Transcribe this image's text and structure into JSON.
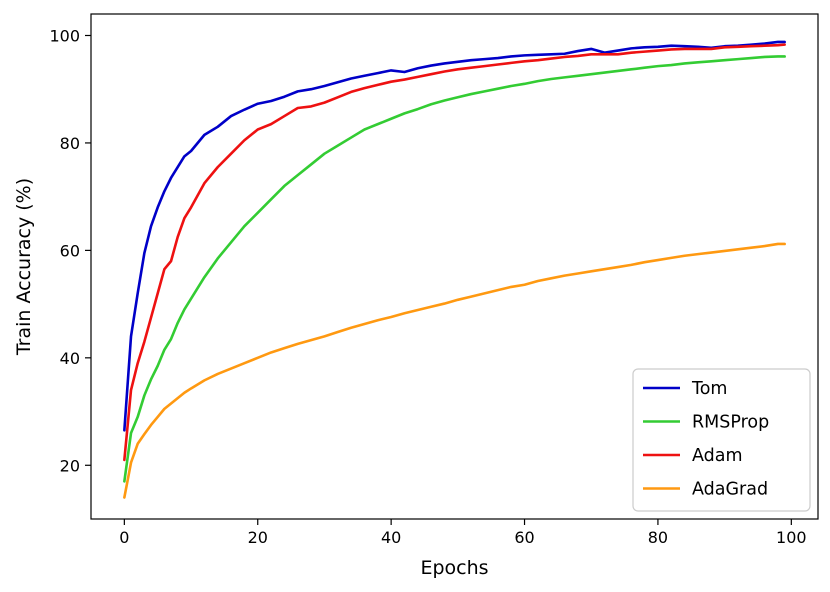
{
  "chart_data": {
    "type": "line",
    "title": "",
    "xlabel": "Epochs",
    "ylabel": "Train Accuracy (%)",
    "xlim": [
      -5,
      104
    ],
    "ylim": [
      10,
      104
    ],
    "xticks": [
      0,
      20,
      40,
      60,
      80,
      100
    ],
    "yticks": [
      20,
      40,
      60,
      80,
      100
    ],
    "grid": false,
    "legend_position": "bottom-right",
    "series": [
      {
        "name": "Tom",
        "color": "#0000c8",
        "points": [
          [
            0,
            26.5
          ],
          [
            1,
            44
          ],
          [
            2,
            52
          ],
          [
            3,
            59.5
          ],
          [
            4,
            64.5
          ],
          [
            5,
            68
          ],
          [
            6,
            71
          ],
          [
            7,
            73.5
          ],
          [
            8,
            75.5
          ],
          [
            9,
            77.5
          ],
          [
            10,
            78.5
          ],
          [
            12,
            81.5
          ],
          [
            14,
            83
          ],
          [
            16,
            85
          ],
          [
            18,
            86.2
          ],
          [
            20,
            87.3
          ],
          [
            22,
            87.8
          ],
          [
            24,
            88.6
          ],
          [
            26,
            89.6
          ],
          [
            28,
            90
          ],
          [
            30,
            90.6
          ],
          [
            32,
            91.3
          ],
          [
            34,
            92
          ],
          [
            36,
            92.5
          ],
          [
            38,
            93
          ],
          [
            40,
            93.5
          ],
          [
            42,
            93.2
          ],
          [
            44,
            93.9
          ],
          [
            46,
            94.4
          ],
          [
            48,
            94.8
          ],
          [
            50,
            95.1
          ],
          [
            52,
            95.4
          ],
          [
            54,
            95.6
          ],
          [
            56,
            95.8
          ],
          [
            58,
            96.1
          ],
          [
            60,
            96.3
          ],
          [
            62,
            96.4
          ],
          [
            64,
            96.5
          ],
          [
            66,
            96.6
          ],
          [
            68,
            97.1
          ],
          [
            70,
            97.5
          ],
          [
            72,
            96.8
          ],
          [
            74,
            97.2
          ],
          [
            76,
            97.6
          ],
          [
            78,
            97.8
          ],
          [
            80,
            97.9
          ],
          [
            82,
            98.1
          ],
          [
            84,
            98
          ],
          [
            86,
            97.9
          ],
          [
            88,
            97.7
          ],
          [
            90,
            98
          ],
          [
            92,
            98.1
          ],
          [
            94,
            98.3
          ],
          [
            96,
            98.5
          ],
          [
            98,
            98.8
          ],
          [
            99,
            98.8
          ]
        ]
      },
      {
        "name": "RMSProp",
        "color": "#33cc33",
        "points": [
          [
            0,
            17
          ],
          [
            1,
            26
          ],
          [
            2,
            29
          ],
          [
            3,
            33
          ],
          [
            4,
            36
          ],
          [
            5,
            38.5
          ],
          [
            6,
            41.5
          ],
          [
            7,
            43.5
          ],
          [
            8,
            46.5
          ],
          [
            9,
            49
          ],
          [
            10,
            51
          ],
          [
            12,
            55
          ],
          [
            14,
            58.5
          ],
          [
            16,
            61.5
          ],
          [
            18,
            64.5
          ],
          [
            20,
            67
          ],
          [
            22,
            69.5
          ],
          [
            24,
            72
          ],
          [
            26,
            74
          ],
          [
            28,
            76
          ],
          [
            30,
            78
          ],
          [
            32,
            79.5
          ],
          [
            34,
            81
          ],
          [
            36,
            82.5
          ],
          [
            38,
            83.5
          ],
          [
            40,
            84.5
          ],
          [
            42,
            85.5
          ],
          [
            44,
            86.3
          ],
          [
            46,
            87.2
          ],
          [
            48,
            87.9
          ],
          [
            50,
            88.5
          ],
          [
            52,
            89.1
          ],
          [
            54,
            89.6
          ],
          [
            56,
            90.1
          ],
          [
            58,
            90.6
          ],
          [
            60,
            91
          ],
          [
            62,
            91.5
          ],
          [
            64,
            91.9
          ],
          [
            66,
            92.2
          ],
          [
            68,
            92.5
          ],
          [
            70,
            92.8
          ],
          [
            72,
            93.1
          ],
          [
            74,
            93.4
          ],
          [
            76,
            93.7
          ],
          [
            78,
            94
          ],
          [
            80,
            94.3
          ],
          [
            82,
            94.5
          ],
          [
            84,
            94.8
          ],
          [
            86,
            95
          ],
          [
            88,
            95.2
          ],
          [
            90,
            95.4
          ],
          [
            92,
            95.6
          ],
          [
            94,
            95.8
          ],
          [
            96,
            96
          ],
          [
            98,
            96.1
          ],
          [
            99,
            96.1
          ]
        ]
      },
      {
        "name": "Adam",
        "color": "#ee1111",
        "points": [
          [
            0,
            21
          ],
          [
            1,
            34
          ],
          [
            2,
            39
          ],
          [
            3,
            43
          ],
          [
            4,
            47.5
          ],
          [
            5,
            52
          ],
          [
            6,
            56.5
          ],
          [
            7,
            58
          ],
          [
            8,
            62.5
          ],
          [
            9,
            66
          ],
          [
            10,
            68
          ],
          [
            12,
            72.5
          ],
          [
            14,
            75.5
          ],
          [
            16,
            78
          ],
          [
            18,
            80.5
          ],
          [
            20,
            82.5
          ],
          [
            22,
            83.5
          ],
          [
            24,
            85
          ],
          [
            26,
            86.5
          ],
          [
            28,
            86.8
          ],
          [
            30,
            87.5
          ],
          [
            32,
            88.5
          ],
          [
            34,
            89.5
          ],
          [
            36,
            90.2
          ],
          [
            38,
            90.8
          ],
          [
            40,
            91.4
          ],
          [
            42,
            91.8
          ],
          [
            44,
            92.3
          ],
          [
            46,
            92.8
          ],
          [
            48,
            93.3
          ],
          [
            50,
            93.7
          ],
          [
            52,
            94
          ],
          [
            54,
            94.3
          ],
          [
            56,
            94.6
          ],
          [
            58,
            94.9
          ],
          [
            60,
            95.2
          ],
          [
            62,
            95.4
          ],
          [
            64,
            95.7
          ],
          [
            66,
            96
          ],
          [
            68,
            96.2
          ],
          [
            70,
            96.5
          ],
          [
            72,
            96.5
          ],
          [
            74,
            96.5
          ],
          [
            76,
            96.8
          ],
          [
            78,
            97
          ],
          [
            80,
            97.2
          ],
          [
            82,
            97.4
          ],
          [
            84,
            97.5
          ],
          [
            86,
            97.5
          ],
          [
            88,
            97.5
          ],
          [
            90,
            97.8
          ],
          [
            92,
            97.9
          ],
          [
            94,
            98
          ],
          [
            96,
            98.1
          ],
          [
            98,
            98.2
          ],
          [
            99,
            98.3
          ]
        ]
      },
      {
        "name": "AdaGrad",
        "color": "#ff9911",
        "points": [
          [
            0,
            14
          ],
          [
            1,
            20.5
          ],
          [
            2,
            24
          ],
          [
            3,
            25.8
          ],
          [
            4,
            27.5
          ],
          [
            5,
            29
          ],
          [
            6,
            30.5
          ],
          [
            7,
            31.5
          ],
          [
            8,
            32.5
          ],
          [
            9,
            33.5
          ],
          [
            10,
            34.3
          ],
          [
            12,
            35.8
          ],
          [
            14,
            37
          ],
          [
            16,
            38
          ],
          [
            18,
            39
          ],
          [
            20,
            40
          ],
          [
            22,
            41
          ],
          [
            24,
            41.8
          ],
          [
            26,
            42.6
          ],
          [
            28,
            43.3
          ],
          [
            30,
            44
          ],
          [
            32,
            44.8
          ],
          [
            34,
            45.6
          ],
          [
            36,
            46.3
          ],
          [
            38,
            47
          ],
          [
            40,
            47.6
          ],
          [
            42,
            48.3
          ],
          [
            44,
            48.9
          ],
          [
            46,
            49.5
          ],
          [
            48,
            50.1
          ],
          [
            50,
            50.8
          ],
          [
            52,
            51.4
          ],
          [
            54,
            52
          ],
          [
            56,
            52.6
          ],
          [
            58,
            53.2
          ],
          [
            60,
            53.6
          ],
          [
            62,
            54.3
          ],
          [
            64,
            54.8
          ],
          [
            66,
            55.3
          ],
          [
            68,
            55.7
          ],
          [
            70,
            56.1
          ],
          [
            72,
            56.5
          ],
          [
            74,
            56.9
          ],
          [
            76,
            57.3
          ],
          [
            78,
            57.8
          ],
          [
            80,
            58.2
          ],
          [
            82,
            58.6
          ],
          [
            84,
            59
          ],
          [
            86,
            59.3
          ],
          [
            88,
            59.6
          ],
          [
            90,
            59.9
          ],
          [
            92,
            60.2
          ],
          [
            94,
            60.5
          ],
          [
            96,
            60.8
          ],
          [
            98,
            61.2
          ],
          [
            99,
            61.2
          ]
        ]
      }
    ]
  }
}
